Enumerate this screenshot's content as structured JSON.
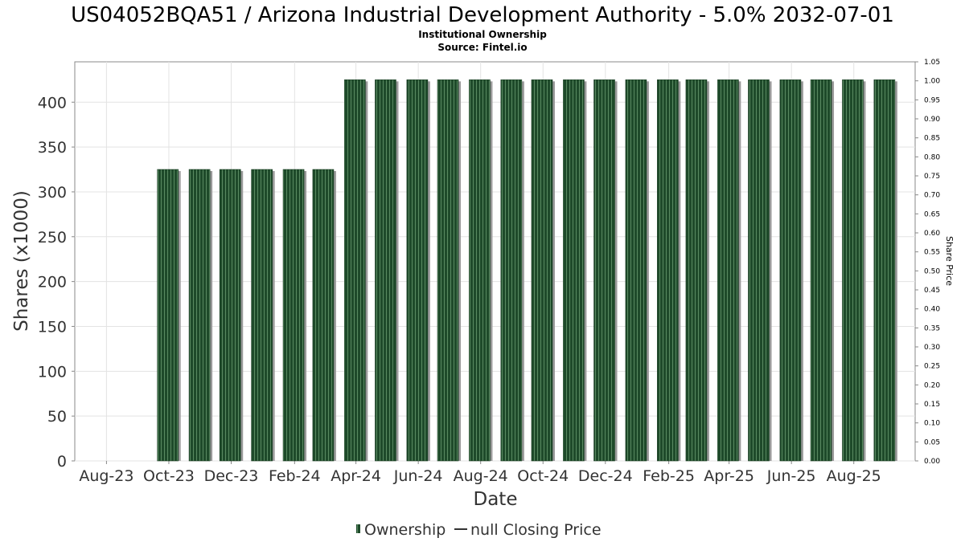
{
  "chart_data": {
    "type": "bar",
    "title": "US04052BQA51 / Arizona Industrial Development Authority - 5.0% 2032-07-01",
    "subtitle_lines": [
      "Institutional Ownership",
      "Source: Fintel.io"
    ],
    "xlabel": "Date",
    "ylabel": "Shares (x1000)",
    "y2label": "Share Price",
    "ylim": [
      0,
      445
    ],
    "y_ticks": [
      0,
      50,
      100,
      150,
      200,
      250,
      300,
      350,
      400
    ],
    "y2lim": [
      0,
      1.05
    ],
    "y2_ticks": [
      "0.00",
      "0.05",
      "0.10",
      "0.15",
      "0.20",
      "0.25",
      "0.30",
      "0.35",
      "0.40",
      "0.45",
      "0.50",
      "0.55",
      "0.60",
      "0.65",
      "0.70",
      "0.75",
      "0.80",
      "0.85",
      "0.90",
      "0.95",
      "1.00",
      "1.05"
    ],
    "x_tick_labels": [
      "Aug-23",
      "Oct-23",
      "Dec-23",
      "Feb-24",
      "Apr-24",
      "Jun-24",
      "Aug-24",
      "Oct-24",
      "Dec-24",
      "Feb-25",
      "Apr-25",
      "Jun-25",
      "Aug-25"
    ],
    "x_start": "2023-07-01",
    "x_end": "2025-09-30",
    "grid": true,
    "legend_position": "bottom",
    "series": [
      {
        "name": "Ownership",
        "color": "#1e4a2a",
        "x": [
          "2023-09-30",
          "2023-10-31",
          "2023-11-30",
          "2023-12-31",
          "2024-01-31",
          "2024-02-29",
          "2024-03-31",
          "2024-04-30",
          "2024-05-31",
          "2024-06-30",
          "2024-07-31",
          "2024-08-31",
          "2024-09-30",
          "2024-10-31",
          "2024-11-30",
          "2024-12-31",
          "2025-01-31",
          "2025-02-28",
          "2025-03-31",
          "2025-04-30",
          "2025-05-31",
          "2025-06-30",
          "2025-07-31",
          "2025-08-31"
        ],
        "values": [
          325,
          325,
          325,
          325,
          325,
          325,
          425,
          425,
          425,
          425,
          425,
          425,
          425,
          425,
          425,
          425,
          425,
          425,
          425,
          425,
          425,
          425,
          425,
          425
        ]
      },
      {
        "name": "null Closing Price",
        "color": "#333333",
        "x": [],
        "values": []
      }
    ]
  }
}
